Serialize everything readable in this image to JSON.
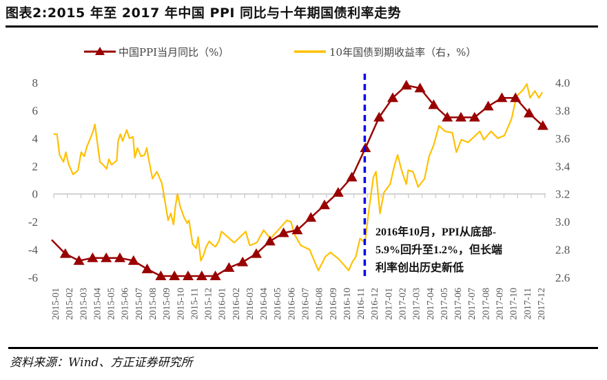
{
  "title": "图表2:2015 年至 2017 年中国 PPI 同比与十年期国债利率走势",
  "source": "资料来源：Wind、方正证券研究所",
  "chart_data": {
    "type": "line",
    "title": "图表2:2015 年至 2017 年中国 PPI 同比与十年期国债利率走势",
    "legend_position": "top",
    "grid": false,
    "colors": {
      "ppi": "#990000",
      "yield": "#FFC000",
      "marker_line": "#0000EE"
    },
    "x_tick_labels": [
      "2015-01",
      "2015-02",
      "2015-03",
      "2015-04",
      "2015-05",
      "2015-06",
      "2015-07",
      "2015-08",
      "2015-09",
      "2015-10",
      "2015-11",
      "2015-12",
      "2016-01",
      "2016-02",
      "2016-03",
      "2016-04",
      "2016-05",
      "2016-06",
      "2016-07",
      "2016-08",
      "2016-09",
      "2016-10",
      "2016-11",
      "2016-12",
      "2017-01",
      "2017-02",
      "2017-03",
      "2017-04",
      "2017-05",
      "2017-06",
      "2017-07",
      "2017-08",
      "2017-09",
      "2017-10",
      "2017-11",
      "2017-12"
    ],
    "y_left": {
      "ylim": [
        -6,
        8
      ],
      "ticks": [
        8,
        6,
        4,
        2,
        0,
        -2,
        -4,
        -6
      ]
    },
    "y_right": {
      "ylim": [
        2.6,
        4.0
      ],
      "ticks": [
        "4.0",
        "3.8",
        "3.6",
        "3.4",
        "3.2",
        "3.0",
        "2.8",
        "2.6"
      ]
    },
    "series": [
      {
        "name": "中国PPI当月同比（%）",
        "axis": "left",
        "marker": "triangle",
        "points": [
          [
            "2014-12",
            -3.3
          ],
          [
            "2015-01",
            -4.3
          ],
          [
            "2015-02",
            -4.8
          ],
          [
            "2015-03",
            -4.6
          ],
          [
            "2015-04",
            -4.6
          ],
          [
            "2015-05",
            -4.6
          ],
          [
            "2015-06",
            -4.8
          ],
          [
            "2015-07",
            -5.4
          ],
          [
            "2015-08",
            -5.9
          ],
          [
            "2015-09",
            -5.9
          ],
          [
            "2015-10",
            -5.9
          ],
          [
            "2015-11",
            -5.9
          ],
          [
            "2015-12",
            -5.9
          ],
          [
            "2016-01",
            -5.3
          ],
          [
            "2016-02",
            -4.9
          ],
          [
            "2016-03",
            -4.3
          ],
          [
            "2016-04",
            -3.4
          ],
          [
            "2016-05",
            -2.8
          ],
          [
            "2016-06",
            -2.6
          ],
          [
            "2016-07",
            -1.7
          ],
          [
            "2016-08",
            -0.8
          ],
          [
            "2016-09",
            0.1
          ],
          [
            "2016-10",
            1.2
          ],
          [
            "2016-11",
            3.3
          ],
          [
            "2016-12",
            5.5
          ],
          [
            "2017-01",
            6.9
          ],
          [
            "2017-02",
            7.8
          ],
          [
            "2017-03",
            7.6
          ],
          [
            "2017-04",
            6.4
          ],
          [
            "2017-05",
            5.5
          ],
          [
            "2017-06",
            5.5
          ],
          [
            "2017-07",
            5.5
          ],
          [
            "2017-08",
            6.3
          ],
          [
            "2017-09",
            6.9
          ],
          [
            "2017-10",
            6.9
          ],
          [
            "2017-11",
            5.8
          ],
          [
            "2017-12",
            4.9
          ]
        ]
      },
      {
        "name": "10年国债到期收益率（右，%）",
        "axis": "right",
        "points": [
          [
            "2015-01-05",
            3.63
          ],
          [
            "2015-01-13",
            3.63
          ],
          [
            "2015-01-19",
            3.48
          ],
          [
            "2015-01-28",
            3.43
          ],
          [
            "2015-02-02",
            3.5
          ],
          [
            "2015-02-08",
            3.41
          ],
          [
            "2015-02-17",
            3.34
          ],
          [
            "2015-02-27",
            3.37
          ],
          [
            "2015-03-06",
            3.5
          ],
          [
            "2015-03-13",
            3.47
          ],
          [
            "2015-03-19",
            3.54
          ],
          [
            "2015-03-27",
            3.6
          ],
          [
            "2015-04-02",
            3.65
          ],
          [
            "2015-04-06",
            3.7
          ],
          [
            "2015-04-11",
            3.58
          ],
          [
            "2015-04-17",
            3.43
          ],
          [
            "2015-04-24",
            3.41
          ],
          [
            "2015-05-02",
            3.38
          ],
          [
            "2015-05-07",
            3.45
          ],
          [
            "2015-05-13",
            3.41
          ],
          [
            "2015-05-25",
            3.44
          ],
          [
            "2015-05-28",
            3.58
          ],
          [
            "2015-06-02",
            3.63
          ],
          [
            "2015-06-07",
            3.58
          ],
          [
            "2015-06-16",
            3.66
          ],
          [
            "2015-06-22",
            3.6
          ],
          [
            "2015-06-30",
            3.61
          ],
          [
            "2015-07-04",
            3.46
          ],
          [
            "2015-07-10",
            3.53
          ],
          [
            "2015-07-18",
            3.47
          ],
          [
            "2015-07-26",
            3.48
          ],
          [
            "2015-07-31",
            3.53
          ],
          [
            "2015-08-04",
            3.46
          ],
          [
            "2015-08-13",
            3.31
          ],
          [
            "2015-08-23",
            3.36
          ],
          [
            "2015-09-03",
            3.28
          ],
          [
            "2015-09-07",
            3.21
          ],
          [
            "2015-09-12",
            3.11
          ],
          [
            "2015-09-17",
            3.01
          ],
          [
            "2015-09-23",
            3.06
          ],
          [
            "2015-09-29",
            2.98
          ],
          [
            "2015-10-03",
            3.11
          ],
          [
            "2015-10-08",
            3.2
          ],
          [
            "2015-10-14",
            3.11
          ],
          [
            "2015-10-23",
            3.03
          ],
          [
            "2015-10-30",
            2.99
          ],
          [
            "2015-11-03",
            3.01
          ],
          [
            "2015-11-11",
            2.84
          ],
          [
            "2015-11-19",
            2.81
          ],
          [
            "2015-11-23",
            2.89
          ],
          [
            "2015-11-29",
            2.72
          ],
          [
            "2015-12-05",
            2.76
          ],
          [
            "2015-12-11",
            2.82
          ],
          [
            "2015-12-18",
            2.86
          ],
          [
            "2015-12-24",
            2.84
          ],
          [
            "2016-01-01",
            2.82
          ],
          [
            "2016-01-09",
            2.86
          ],
          [
            "2016-01-15",
            2.93
          ],
          [
            "2016-02-12",
            2.85
          ],
          [
            "2016-03-08",
            2.93
          ],
          [
            "2016-03-17",
            2.83
          ],
          [
            "2016-04-02",
            2.85
          ],
          [
            "2016-04-17",
            2.94
          ],
          [
            "2016-05-02",
            2.88
          ],
          [
            "2016-05-17",
            2.93
          ],
          [
            "2016-06-08",
            3.01
          ],
          [
            "2016-06-17",
            3.0
          ],
          [
            "2016-06-25",
            2.91
          ],
          [
            "2016-07-09",
            2.83
          ],
          [
            "2016-07-29",
            2.8
          ],
          [
            "2016-08-18",
            2.65
          ],
          [
            "2016-09-03",
            2.75
          ],
          [
            "2016-09-14",
            2.78
          ],
          [
            "2016-10-03",
            2.73
          ],
          [
            "2016-10-25",
            2.65
          ],
          [
            "2016-11-02",
            2.71
          ],
          [
            "2016-11-10",
            2.75
          ],
          [
            "2016-11-19",
            2.88
          ],
          [
            "2016-11-30",
            2.85
          ],
          [
            "2016-12-10",
            3.11
          ],
          [
            "2016-12-19",
            3.32
          ],
          [
            "2016-12-25",
            3.36
          ],
          [
            "2017-01-03",
            3.06
          ],
          [
            "2017-01-12",
            3.21
          ],
          [
            "2017-01-26",
            3.27
          ],
          [
            "2017-02-05",
            3.41
          ],
          [
            "2017-02-11",
            3.48
          ],
          [
            "2017-02-20",
            3.36
          ],
          [
            "2017-03-01",
            3.27
          ],
          [
            "2017-03-05",
            3.37
          ],
          [
            "2017-03-16",
            3.36
          ],
          [
            "2017-03-28",
            3.25
          ],
          [
            "2017-04-11",
            3.31
          ],
          [
            "2017-04-21",
            3.47
          ],
          [
            "2017-05-01",
            3.55
          ],
          [
            "2017-05-13",
            3.69
          ],
          [
            "2017-05-27",
            3.65
          ],
          [
            "2017-06-12",
            3.64
          ],
          [
            "2017-06-21",
            3.5
          ],
          [
            "2017-07-02",
            3.59
          ],
          [
            "2017-07-17",
            3.57
          ],
          [
            "2017-08-13",
            3.65
          ],
          [
            "2017-08-22",
            3.59
          ],
          [
            "2017-09-07",
            3.65
          ],
          [
            "2017-09-22",
            3.6
          ],
          [
            "2017-10-07",
            3.62
          ],
          [
            "2017-10-23",
            3.74
          ],
          [
            "2017-11-03",
            3.9
          ],
          [
            "2017-11-18",
            3.95
          ],
          [
            "2017-11-26",
            3.99
          ],
          [
            "2017-12-03",
            3.89
          ],
          [
            "2017-12-14",
            3.94
          ],
          [
            "2017-12-23",
            3.89
          ],
          [
            "2017-12-31",
            3.93
          ]
        ]
      }
    ],
    "vertical_marker": {
      "x": "2016-11",
      "style": "dashed"
    },
    "annotation": {
      "lines": [
        "2016年10月，PPI从底部-",
        "5.9%回升至1.2%，但长端",
        "利率创出历史新低"
      ]
    }
  }
}
